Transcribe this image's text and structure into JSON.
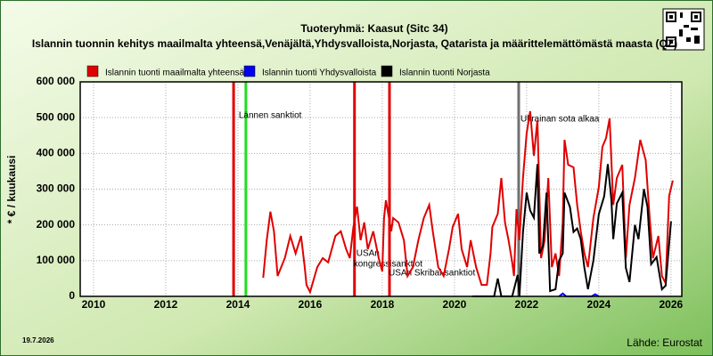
{
  "chart_data": {
    "type": "line",
    "title": "Tuoteryhmä: Kaasut (Sitc 34)",
    "subtitle": "Islannin tuonnin kehitys maailmalta yhteensä,Venäjältä,Yhdysvalloista,Norjasta, Qatarista ja määrittelemättömästä maasta (QZ)",
    "y_label": "* € / kuukausi",
    "source": "Lähde: Eurostat",
    "date": "19.7.2026",
    "xlim": [
      2009.63,
      2026.3
    ],
    "xticks": [
      2010,
      2012,
      2014,
      2016,
      2018,
      2020,
      2022,
      2024,
      2026
    ],
    "ylim": [
      0,
      600000
    ],
    "yticks": [
      {
        "value": 0,
        "label": "0"
      },
      {
        "value": 100000,
        "label": "100 000"
      },
      {
        "value": 200000,
        "label": "200 000"
      },
      {
        "value": 300000,
        "label": "300 000"
      },
      {
        "value": 400000,
        "label": "400 000"
      },
      {
        "value": 500000,
        "label": "500 000"
      },
      {
        "value": 600000,
        "label": "600 000"
      }
    ],
    "grid": true,
    "events": [
      {
        "x": 2013.88,
        "color": "#e00000"
      },
      {
        "x": 2014.22,
        "color": "#22dd22",
        "label": "Lännen sanktiot"
      },
      {
        "x": 2017.23,
        "color": "#e00000",
        "label": [
          "USAn",
          "kongressisanktiot"
        ]
      },
      {
        "x": 2018.2,
        "color": "#e00000",
        "label": "USAn Skribal-sanktiot"
      },
      {
        "x": 2021.78,
        "color": "#707070",
        "label": "Ukrainan sota alkaa"
      }
    ],
    "series": [
      {
        "name": "Islannin tuonti maailmalta yhteensä",
        "color": "#e00000",
        "x": [
          2014.7,
          2014.8,
          2014.9,
          2015.0,
          2015.1,
          2015.3,
          2015.45,
          2015.6,
          2015.75,
          2015.85,
          2015.9,
          2016.0,
          2016.2,
          2016.35,
          2016.5,
          2016.7,
          2016.85,
          2017.0,
          2017.1,
          2017.2,
          2017.3,
          2017.4,
          2017.5,
          2017.6,
          2017.75,
          2017.9,
          2018.0,
          2018.05,
          2018.1,
          2018.25,
          2018.3,
          2018.45,
          2018.6,
          2018.7,
          2018.85,
          2019.0,
          2019.15,
          2019.3,
          2019.4,
          2019.55,
          2019.7,
          2019.85,
          2019.95,
          2020.1,
          2020.2,
          2020.35,
          2020.45,
          2020.6,
          2020.75,
          2020.9,
          2021.0,
          2021.05,
          2021.2,
          2021.3,
          2021.4,
          2021.5,
          2021.6,
          2021.65,
          2021.72,
          2021.8,
          2021.9,
          2022.0,
          2022.1,
          2022.2,
          2022.3,
          2022.4,
          2022.5,
          2022.6,
          2022.7,
          2022.8,
          2022.9,
          2023.0,
          2023.05,
          2023.15,
          2023.3,
          2023.4,
          2023.5,
          2023.6,
          2023.7,
          2023.85,
          2024.0,
          2024.1,
          2024.2,
          2024.3,
          2024.4,
          2024.5,
          2024.65,
          2024.75,
          2024.85,
          2025.0,
          2025.15,
          2025.3,
          2025.4,
          2025.5,
          2025.65,
          2025.75,
          2025.85,
          2025.95,
          2026.05
        ],
        "values": [
          52000,
          157000,
          237000,
          182000,
          57000,
          107000,
          169000,
          120000,
          169000,
          82000,
          32000,
          12000,
          82000,
          107000,
          95000,
          169000,
          182000,
          132000,
          107000,
          194000,
          251000,
          157000,
          207000,
          132000,
          182000,
          107000,
          70000,
          219000,
          269000,
          182000,
          219000,
          207000,
          157000,
          57000,
          82000,
          157000,
          219000,
          256000,
          182000,
          82000,
          57000,
          132000,
          194000,
          231000,
          132000,
          82000,
          157000,
          82000,
          32000,
          32000,
          120000,
          194000,
          231000,
          331000,
          207000,
          157000,
          95000,
          57000,
          244000,
          157000,
          331000,
          456000,
          518000,
          393000,
          493000,
          107000,
          157000,
          331000,
          82000,
          120000,
          57000,
          207000,
          438000,
          368000,
          361000,
          256000,
          182000,
          120000,
          82000,
          219000,
          306000,
          418000,
          443000,
          498000,
          256000,
          331000,
          368000,
          107000,
          256000,
          331000,
          438000,
          381000,
          231000,
          107000,
          169000,
          57000,
          37000,
          281000,
          324000
        ]
      },
      {
        "name": "Islannin tuonti Yhdysvalloista",
        "color": "#0000ee",
        "x": [
          2022.9,
          2023.0,
          2023.1,
          2023.8,
          2023.9,
          2024.0
        ],
        "values": [
          0,
          8000,
          0,
          0,
          6000,
          0
        ]
      },
      {
        "name": "Islannin tuonti Norjasta",
        "color": "#000000",
        "x": [
          2020.5,
          2021.1,
          2021.2,
          2021.3,
          2021.6,
          2021.75,
          2021.8,
          2021.9,
          2022.0,
          2022.1,
          2022.2,
          2022.3,
          2022.35,
          2022.45,
          2022.55,
          2022.65,
          2022.8,
          2022.9,
          2023.0,
          2023.05,
          2023.2,
          2023.3,
          2023.4,
          2023.5,
          2023.6,
          2023.7,
          2023.85,
          2024.0,
          2024.15,
          2024.25,
          2024.35,
          2024.4,
          2024.5,
          2024.65,
          2024.75,
          2024.85,
          2025.0,
          2025.1,
          2025.25,
          2025.35,
          2025.45,
          2025.6,
          2025.75,
          2025.85,
          2026.0
        ],
        "values": [
          0,
          0,
          50000,
          0,
          0,
          60000,
          0,
          180000,
          290000,
          240000,
          220000,
          370000,
          120000,
          140000,
          290000,
          15000,
          20000,
          100000,
          120000,
          290000,
          250000,
          180000,
          190000,
          160000,
          80000,
          20000,
          100000,
          230000,
          280000,
          370000,
          270000,
          160000,
          260000,
          290000,
          80000,
          40000,
          200000,
          160000,
          300000,
          250000,
          90000,
          110000,
          20000,
          30000,
          210000
        ]
      }
    ]
  }
}
